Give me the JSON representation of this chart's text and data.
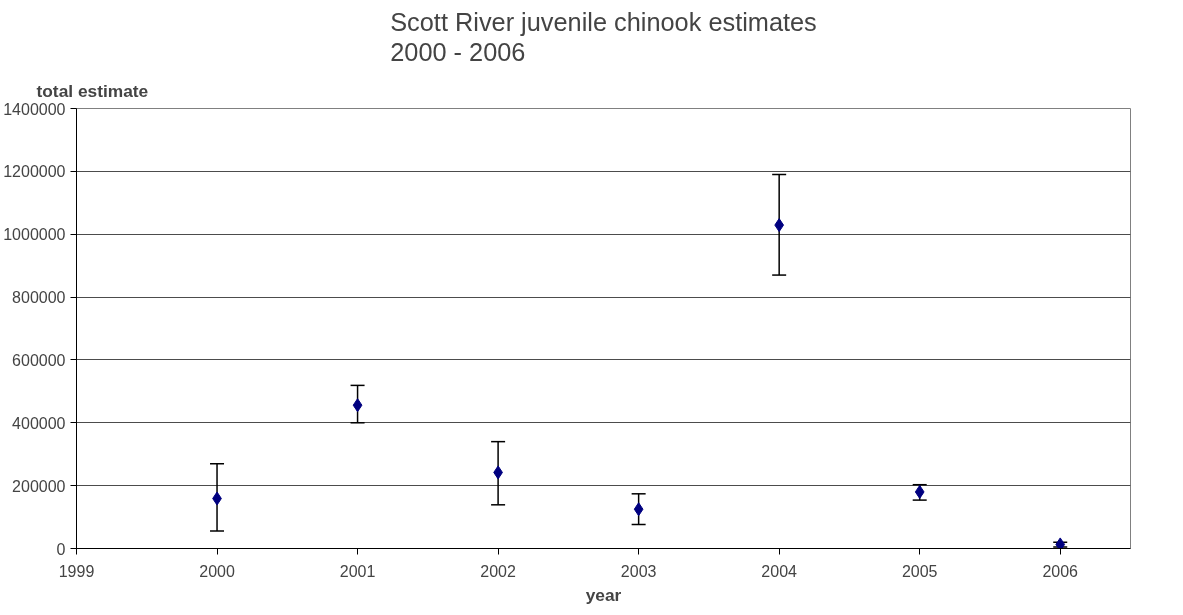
{
  "chart_data": {
    "type": "scatter",
    "title": "Scott River juvenile chinook estimates\n2000 - 2006",
    "xlabel": "year",
    "ylabel": "total estimate",
    "x": [
      2000,
      2001,
      2002,
      2003,
      2004,
      2005,
      2006
    ],
    "series": [
      {
        "color": "#000080",
        "values": [
          159000,
          456000,
          242000,
          125000,
          1029000,
          180000,
          13000
        ],
        "errors": [
          [
            56000,
            270000
          ],
          [
            400000,
            519000
          ],
          [
            139000,
            340000
          ],
          [
            76000,
            174000
          ],
          [
            870000,
            1190000
          ],
          [
            154000,
            203000
          ],
          [
            5000,
            20000
          ]
        ]
      }
    ],
    "xlim": [
      1999,
      2006.5
    ],
    "xticks": [
      1999,
      2000,
      2001,
      2002,
      2003,
      2004,
      2005,
      2006
    ],
    "ylim": [
      0,
      1400000
    ],
    "yticks": [
      0,
      200000,
      400000,
      600000,
      800000,
      1000000,
      1200000,
      1400000
    ],
    "grid": "y",
    "marker": "diamond"
  }
}
